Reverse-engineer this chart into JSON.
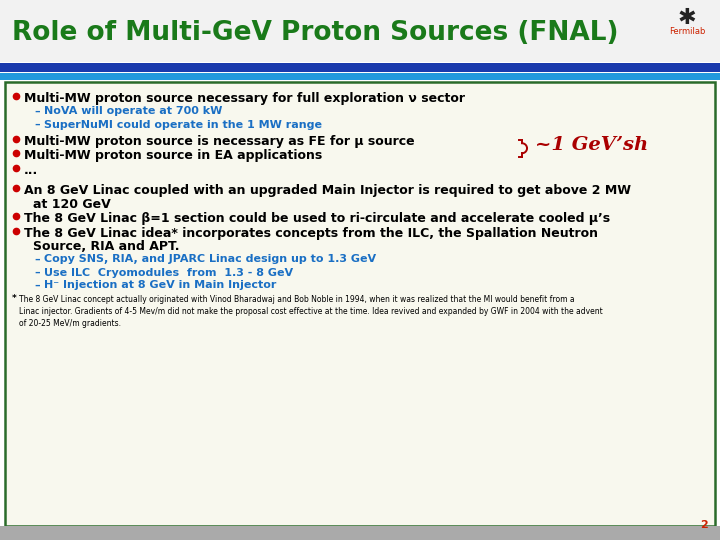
{
  "title": "Role of Multi-GeV Proton Sources (FNAL)",
  "title_color": "#1a7a1a",
  "outer_bg": "#b0b0b0",
  "slide_bg": "#ffffff",
  "bar1_color": "#1a3aad",
  "bar2_color": "#2299dd",
  "border_color": "#2a6b2a",
  "content_bg": "#f8f8ee",
  "bullet_color": "#cc0000",
  "text_color": "#000000",
  "subtext_color": "#1a6fc4",
  "annotation_color": "#aa0000",
  "page_num_color": "#cc2200",
  "page_num": "2",
  "sub_bullets_1": [
    "NoVA will operate at 700 kW",
    "SuperNuMI could operate in the 1 MW range"
  ],
  "sub_bullets_2": [
    "Copy SNS, RIA, and JPARC Linac design up to 1.3 GeV",
    "Use ILC  Cryomodules  from  1.3 - 8 GeV",
    "H⁻ Injection at 8 GeV in Main Injector"
  ],
  "footnote": "The 8 GeV Linac concept actually originated with Vinod Bharadwaj and Bob Noble in 1994, when it was realized that the MI would benefit from a\nLinac injector. Gradients of 4-5 Mev/m did not make the proposal cost effective at the time. Idea revived and expanded by GWF in 2004 with the advent\nof 20-25 MeV/m gradients.",
  "annotation": "~1 GeV’sh",
  "title_fontsize": 19,
  "bullet_fontsize": 9.0,
  "sub_fontsize": 8.0,
  "footnote_fontsize": 5.5
}
